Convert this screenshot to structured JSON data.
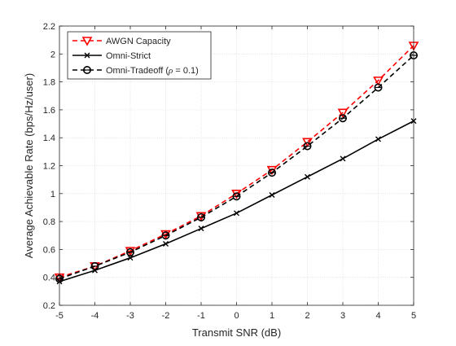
{
  "chart_data": {
    "type": "line",
    "title": "",
    "xlabel": "Transmit SNR (dB)",
    "ylabel": "Average Achievable Rate (bps/Hz/user)",
    "xlim": [
      -5,
      5
    ],
    "ylim": [
      0.2,
      2.2
    ],
    "xticks": [
      -5,
      -4,
      -3,
      -2,
      -1,
      0,
      1,
      2,
      3,
      4,
      5
    ],
    "yticks": [
      0.2,
      0.4,
      0.6,
      0.8,
      1,
      1.2,
      1.4,
      1.6,
      1.8,
      2,
      2.2
    ],
    "grid": true,
    "legend_position": "top-left",
    "x": [
      -5,
      -4,
      -3,
      -2,
      -1,
      0,
      1,
      2,
      3,
      4,
      5
    ],
    "series": [
      {
        "name": "AWGN Capacity",
        "values": [
          0.4,
          0.48,
          0.59,
          0.71,
          0.84,
          1.0,
          1.17,
          1.37,
          1.58,
          1.81,
          2.06
        ],
        "color": "#ff0000",
        "line_style": "dashed",
        "marker": "triangle-down"
      },
      {
        "name": "Omni-Strict",
        "values": [
          0.37,
          0.45,
          0.54,
          0.64,
          0.75,
          0.86,
          0.99,
          1.12,
          1.25,
          1.39,
          1.52
        ],
        "color": "#000000",
        "line_style": "solid",
        "marker": "x"
      },
      {
        "name": "Omni-Tradeoff (ρ = 0.1)",
        "name_prefix": "Omni-Tradeoff (",
        "name_symbol": "ρ",
        "name_suffix": " = 0.1)",
        "values": [
          0.39,
          0.48,
          0.58,
          0.7,
          0.83,
          0.98,
          1.15,
          1.34,
          1.54,
          1.76,
          1.99
        ],
        "color": "#000000",
        "line_style": "dashed",
        "marker": "circle"
      }
    ]
  }
}
